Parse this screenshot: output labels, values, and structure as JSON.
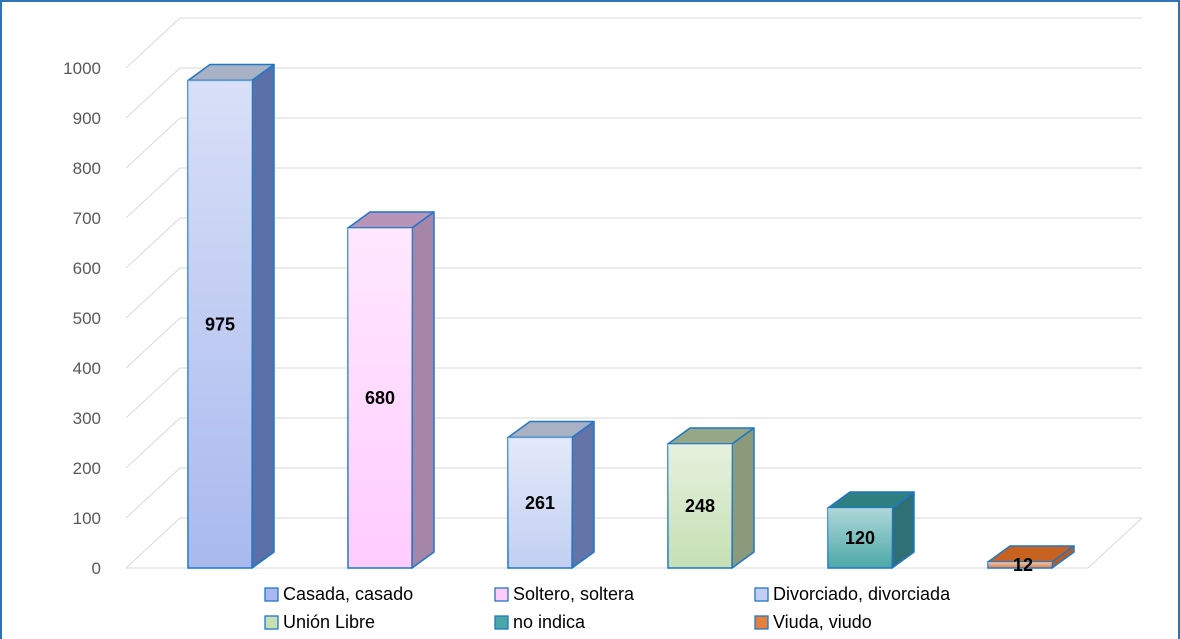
{
  "chart_data": {
    "type": "bar",
    "title": "",
    "xlabel": "",
    "ylabel": "",
    "ylim": [
      0,
      1000
    ],
    "y_ticks": [
      "0",
      "100",
      "200",
      "300",
      "400",
      "500",
      "600",
      "700",
      "800",
      "900",
      "1000"
    ],
    "categories": [
      "Casada, casado",
      "Soltero, soltera",
      "Divorciado, divorciada",
      "Unión Libre",
      "no indica",
      "Viuda, viudo"
    ],
    "values": [
      975,
      680,
      261,
      248,
      120,
      12
    ],
    "data_labels": [
      "975",
      "680",
      "261",
      "248",
      "120",
      "12"
    ],
    "legend": {
      "placement": "bottom",
      "entries": [
        "Casada, casado",
        "Soltero, soltera",
        "Divorciado, divorciada",
        "Unión Libre",
        "no indica",
        "Viuda, viudo"
      ]
    },
    "grid": true,
    "style": "3d-columns",
    "colors": {
      "bars_front": [
        "#a9b9ee",
        "#ffccff",
        "#c2cff2",
        "#c6e0b4",
        "#4ca8a8",
        "#e57f3a"
      ],
      "bars_side": [
        "#5a70a6",
        "#a585a8",
        "#6474a6",
        "#8a9a7b",
        "#2f7075",
        "#c05a1a"
      ],
      "bars_top": [
        "#a9b2c4",
        "#b894b8",
        "#a9b2c4",
        "#95a787",
        "#2e8080",
        "#c8631f"
      ],
      "outline": "#1f77c8",
      "gridline": "#d9d9d9",
      "frame": "#2e75b6"
    }
  }
}
